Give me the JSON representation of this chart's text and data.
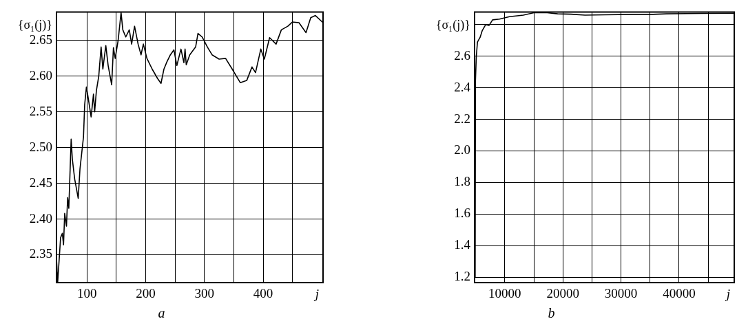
{
  "chart_data": [
    {
      "type": "line",
      "title": "a",
      "xlabel": "j",
      "ylabel": "{σ₁(j)}",
      "grid": true,
      "xlim": [
        48,
        502
      ],
      "ylim": [
        2.311,
        2.69
      ],
      "xticks": [
        100,
        {
          "value": 150,
          "label": null
        },
        200,
        {
          "value": 250,
          "label": null
        },
        300,
        {
          "value": 350,
          "label": null
        },
        400,
        {
          "value": 450,
          "label": null
        }
      ],
      "yticks": [
        2.35,
        {
          "value": 2.4,
          "label": "2.40"
        },
        2.45,
        {
          "value": 2.5,
          "label": "2.50"
        },
        2.55,
        {
          "value": 2.6,
          "label": "2.60"
        },
        2.65
      ],
      "x": [
        48,
        50,
        55,
        58,
        60,
        62,
        65,
        67,
        69,
        73,
        75,
        79,
        85,
        88,
        94,
        96,
        99,
        102,
        107,
        111,
        113,
        116,
        120,
        124,
        127,
        132,
        136,
        142,
        145,
        148,
        153,
        158,
        161,
        166,
        172,
        176,
        181,
        187,
        192,
        196,
        202,
        211,
        220,
        226,
        231,
        236,
        242,
        248,
        253,
        260,
        265,
        267,
        269,
        275,
        285,
        289,
        296,
        305,
        313,
        325,
        336,
        348,
        361,
        372,
        381,
        387,
        396,
        402,
        411,
        422,
        431,
        442,
        450,
        461,
        473,
        481,
        489,
        502
      ],
      "series": [
        {
          "color": "#000000",
          "values": [
            2.345,
            2.311,
            2.374,
            2.38,
            2.364,
            2.408,
            2.39,
            2.43,
            2.415,
            2.512,
            2.484,
            2.456,
            2.429,
            2.47,
            2.515,
            2.56,
            2.585,
            2.57,
            2.543,
            2.575,
            2.55,
            2.58,
            2.6,
            2.641,
            2.61,
            2.643,
            2.615,
            2.588,
            2.64,
            2.625,
            2.65,
            2.689,
            2.665,
            2.655,
            2.665,
            2.645,
            2.67,
            2.645,
            2.63,
            2.645,
            2.625,
            2.61,
            2.597,
            2.59,
            2.61,
            2.62,
            2.63,
            2.637,
            2.615,
            2.638,
            2.619,
            2.638,
            2.616,
            2.63,
            2.641,
            2.66,
            2.655,
            2.641,
            2.63,
            2.624,
            2.625,
            2.609,
            2.591,
            2.594,
            2.613,
            2.605,
            2.638,
            2.624,
            2.654,
            2.645,
            2.665,
            2.67,
            2.676,
            2.675,
            2.661,
            2.682,
            2.685,
            2.675
          ]
        }
      ]
    },
    {
      "type": "line",
      "title": "b",
      "xlabel": "j",
      "ylabel": "{σ₁(j)}",
      "grid": true,
      "xlim": [
        4800,
        49500
      ],
      "ylim": [
        1.166,
        2.88
      ],
      "xticks": [
        10000,
        {
          "value": 15000,
          "label": null
        },
        20000,
        {
          "value": 25000,
          "label": null
        },
        30000,
        {
          "value": 35000,
          "label": null
        },
        40000,
        {
          "value": 45000,
          "label": null
        }
      ],
      "yticks": [
        1.2,
        1.4,
        1.6,
        1.8,
        {
          "value": 2,
          "label": "2.0"
        },
        2.2,
        2.4,
        2.6,
        {
          "value": 2.8,
          "label": null
        }
      ],
      "x": [
        4900,
        4950,
        5100,
        5300,
        5760,
        6100,
        6700,
        7300,
        7900,
        9100,
        10800,
        13200,
        15000,
        17300,
        19100,
        21400,
        23800,
        27300,
        32000,
        35500,
        37800,
        41300,
        49500
      ],
      "series": [
        {
          "color": "#000000",
          "values": [
            1.2,
            2.443,
            2.6,
            2.69,
            2.72,
            2.76,
            2.8,
            2.795,
            2.83,
            2.835,
            2.85,
            2.86,
            2.875,
            2.875,
            2.868,
            2.866,
            2.86,
            2.862,
            2.865,
            2.865,
            2.868,
            2.87,
            2.872
          ]
        }
      ]
    }
  ]
}
